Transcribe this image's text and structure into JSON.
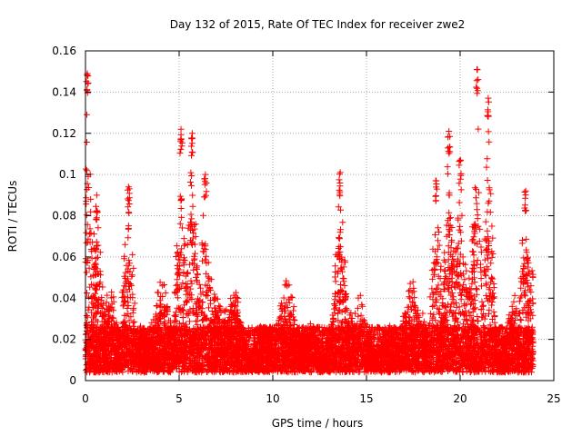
{
  "chart_data": {
    "type": "scatter",
    "title": "Day 132 of 2015, Rate Of TEC Index for receiver zwe2",
    "xlabel": "GPS time / hours",
    "ylabel": "ROTI / TECUs",
    "xlim": [
      0,
      25
    ],
    "ylim": [
      0,
      0.16
    ],
    "xticks": [
      0,
      5,
      10,
      15,
      20,
      25
    ],
    "xtick_labels": [
      "0",
      "5",
      "10",
      "15",
      "20",
      "25"
    ],
    "yticks": [
      0,
      0.02,
      0.04,
      0.06,
      0.08,
      0.1,
      0.12,
      0.14,
      0.16
    ],
    "ytick_labels": [
      "0",
      "0.02",
      "0.04",
      "0.06",
      "0.08",
      "0.1",
      "0.12",
      "0.14",
      "0.16"
    ],
    "grid": true,
    "marker": "+",
    "series_color": "#ff0000",
    "data_range_hours": [
      0,
      23.9
    ],
    "notable_peaks": [
      {
        "x": 0.1,
        "y": 0.149
      },
      {
        "x": 0.6,
        "y": 0.09
      },
      {
        "x": 2.3,
        "y": 0.094
      },
      {
        "x": 5.1,
        "y": 0.122
      },
      {
        "x": 5.7,
        "y": 0.12
      },
      {
        "x": 6.4,
        "y": 0.1
      },
      {
        "x": 13.6,
        "y": 0.101
      },
      {
        "x": 18.7,
        "y": 0.097
      },
      {
        "x": 19.4,
        "y": 0.121
      },
      {
        "x": 20.0,
        "y": 0.107
      },
      {
        "x": 20.9,
        "y": 0.151
      },
      {
        "x": 21.5,
        "y": 0.137
      },
      {
        "x": 23.5,
        "y": 0.092
      }
    ]
  }
}
